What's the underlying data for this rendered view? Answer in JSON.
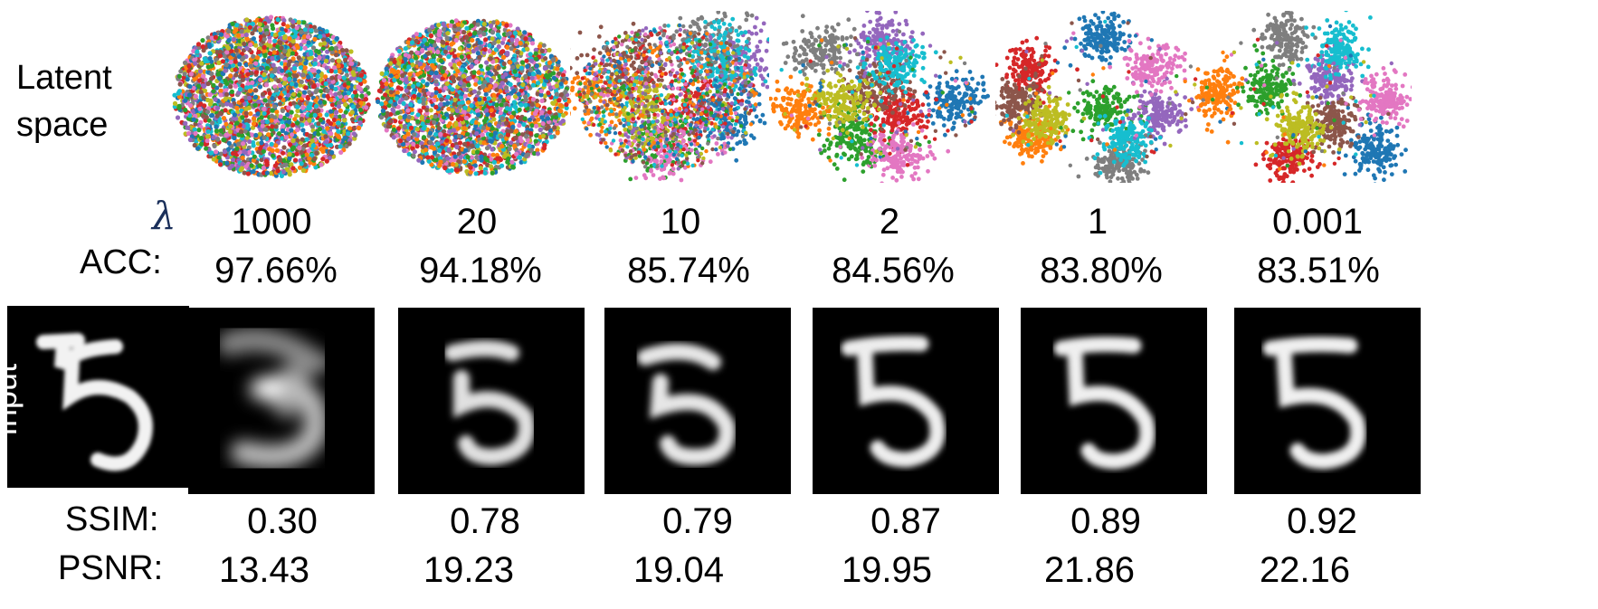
{
  "labels": {
    "latent_line1": "Latent",
    "latent_line2": "space",
    "lambda_symbol": "λ",
    "acc": "ACC:",
    "input": "Input",
    "ssim": "SSIM:",
    "psnr": "PSNR:"
  },
  "columns": [
    {
      "lambda": "1000",
      "acc": "97.66%",
      "ssim": "0.30",
      "psnr": "13.43"
    },
    {
      "lambda": "20",
      "acc": "94.18%",
      "ssim": "0.78",
      "psnr": "19.23"
    },
    {
      "lambda": "10",
      "acc": "85.74%",
      "ssim": "0.79",
      "psnr": "19.04"
    },
    {
      "lambda": "2",
      "acc": "84.56%",
      "ssim": "0.87",
      "psnr": "19.95"
    },
    {
      "lambda": "1",
      "acc": "83.80%",
      "ssim": "0.89",
      "psnr": "21.86"
    },
    {
      "lambda": "0.001",
      "acc": "83.51%",
      "ssim": "0.92",
      "psnr": "22.16"
    }
  ],
  "cluster_colors": [
    "#1f77b4",
    "#ff7f0e",
    "#2ca02c",
    "#d62728",
    "#9467bd",
    "#8c564b",
    "#e377c2",
    "#7f7f7f",
    "#bcbd22",
    "#17becf"
  ]
}
